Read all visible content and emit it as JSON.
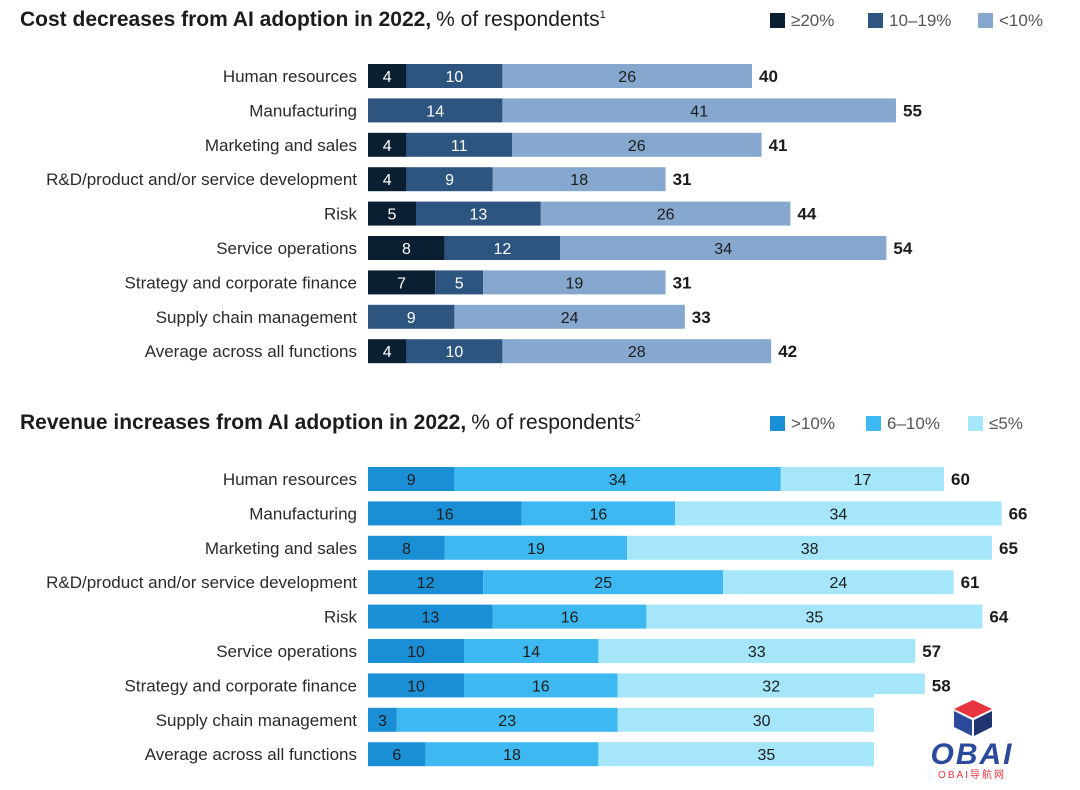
{
  "chart_data": [
    {
      "type": "bar",
      "orientation": "horizontal",
      "stacked": true,
      "title": "Cost decreases from AI adoption in 2022,",
      "subtitle": "% of respondents",
      "footnote_marker": "1",
      "legend_position": "top-right",
      "categories": [
        "Human resources",
        "Manufacturing",
        "Marketing and sales",
        "R&D/product and/or service development",
        "Risk",
        "Service operations",
        "Strategy and corporate finance",
        "Supply chain management",
        "Average across all functions"
      ],
      "series": [
        {
          "name": "≥20%",
          "color": "#0b1f33",
          "text_color": "#ffffff",
          "values": [
            4,
            0,
            4,
            4,
            5,
            8,
            7,
            0,
            4
          ]
        },
        {
          "name": "10–19%",
          "color": "#2d5580",
          "text_color": "#ffffff",
          "values": [
            10,
            14,
            11,
            9,
            13,
            12,
            5,
            9,
            10
          ]
        },
        {
          "name": "<10%",
          "color": "#86a8cf",
          "text_color": "#1c1c1c",
          "values": [
            26,
            41,
            26,
            18,
            26,
            34,
            19,
            24,
            28
          ]
        }
      ],
      "totals": [
        40,
        55,
        41,
        31,
        44,
        54,
        31,
        33,
        42
      ]
    },
    {
      "type": "bar",
      "orientation": "horizontal",
      "stacked": true,
      "title": "Revenue increases from AI adoption in 2022,",
      "subtitle": "% of respondents",
      "footnote_marker": "2",
      "legend_position": "top-right",
      "categories": [
        "Human resources",
        "Manufacturing",
        "Marketing and sales",
        "R&D/product and/or service development",
        "Risk",
        "Service operations",
        "Strategy and corporate finance",
        "Supply chain management",
        "Average across all functions"
      ],
      "series": [
        {
          "name": ">10%",
          "color": "#1b8fd6",
          "text_color": "#1c1c1c",
          "values": [
            9,
            16,
            8,
            12,
            13,
            10,
            10,
            3,
            6
          ]
        },
        {
          "name": "6–10%",
          "color": "#3db8f0",
          "text_color": "#1c1c1c",
          "values": [
            34,
            16,
            19,
            25,
            16,
            14,
            16,
            23,
            18
          ]
        },
        {
          "name": "≤5%",
          "color": "#a5e6fb",
          "text_color": "#1c1c1c",
          "values": [
            17,
            34,
            38,
            24,
            35,
            33,
            32,
            30,
            35
          ]
        }
      ],
      "totals": [
        60,
        66,
        65,
        61,
        64,
        57,
        58,
        null,
        null
      ]
    }
  ],
  "watermark": {
    "brand": "OBAI",
    "caption": "OBAI导航网",
    "colors": {
      "cube_top": "#e8343f",
      "cube_left": "#2c4a9b",
      "cube_right": "#1f3470",
      "text": "#2c4a9b",
      "caption": "#e8343f"
    }
  }
}
